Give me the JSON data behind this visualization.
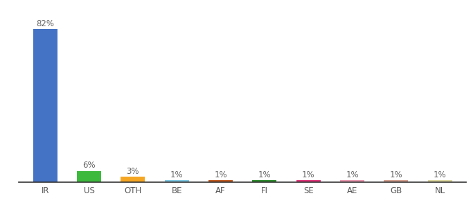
{
  "categories": [
    "IR",
    "US",
    "OTH",
    "BE",
    "AF",
    "FI",
    "SE",
    "AE",
    "GB",
    "NL"
  ],
  "values": [
    82,
    6,
    3,
    1,
    1,
    1,
    1,
    1,
    1,
    1
  ],
  "labels": [
    "82%",
    "6%",
    "3%",
    "1%",
    "1%",
    "1%",
    "1%",
    "1%",
    "1%",
    "1%"
  ],
  "bar_colors": [
    "#4472c4",
    "#3dba3d",
    "#f5a623",
    "#7ec8e3",
    "#c05a20",
    "#2d8a2d",
    "#e0357a",
    "#e898b0",
    "#d4a090",
    "#ddd8a0"
  ],
  "background_color": "#ffffff",
  "ylim": [
    0,
    92
  ],
  "label_fontsize": 8.5,
  "tick_fontsize": 8.5,
  "bar_width": 0.55
}
